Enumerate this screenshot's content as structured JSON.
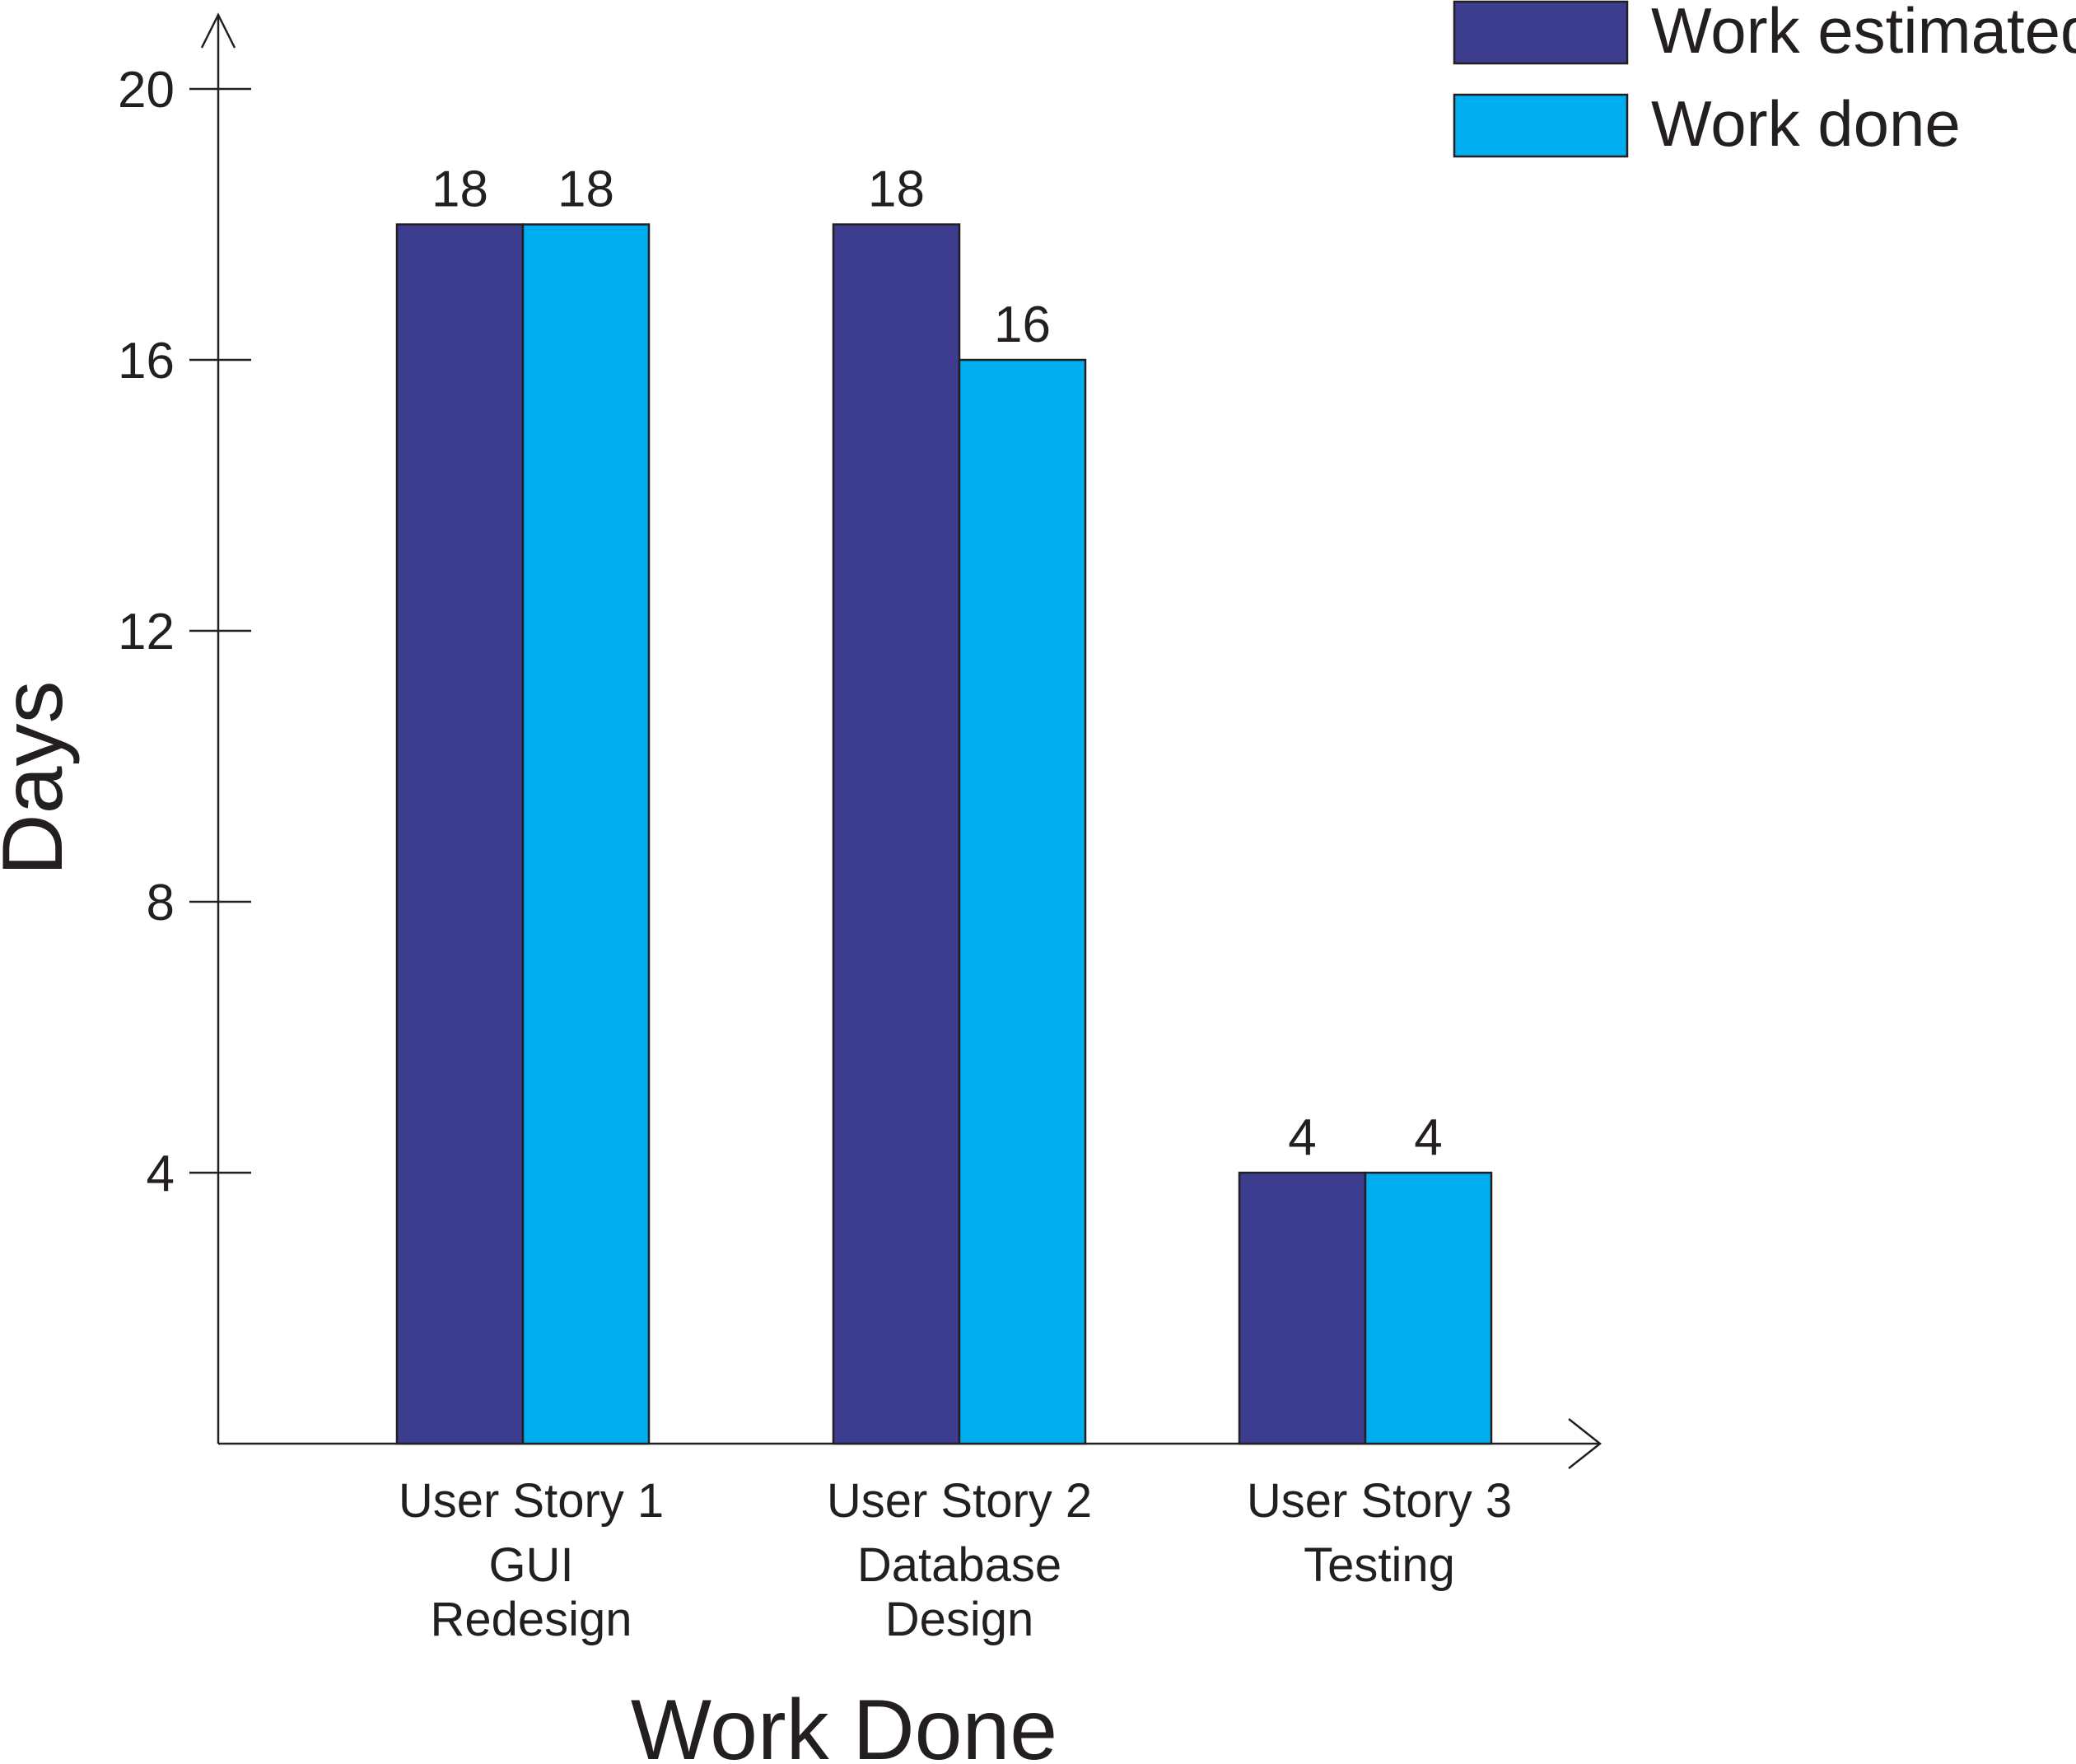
{
  "chart_data": {
    "type": "bar",
    "xlabel": "Work Done",
    "ylabel": "Days",
    "ylim": [
      0,
      21
    ],
    "yticks": [
      4,
      8,
      12,
      16,
      20
    ],
    "categories": [
      {
        "lines": [
          "User Story 1",
          "GUI",
          "Redesign"
        ]
      },
      {
        "lines": [
          "User Story 2",
          "Database",
          "Design"
        ]
      },
      {
        "lines": [
          "User Story 3",
          "Testing"
        ]
      }
    ],
    "series": [
      {
        "name": "Work estimated",
        "color": "#3d3d8f",
        "values": [
          18,
          18,
          4
        ]
      },
      {
        "name": "Work done",
        "color": "#00aeef",
        "values": [
          18,
          16,
          4
        ]
      }
    ],
    "legend_position": "top-right",
    "grid": false
  }
}
